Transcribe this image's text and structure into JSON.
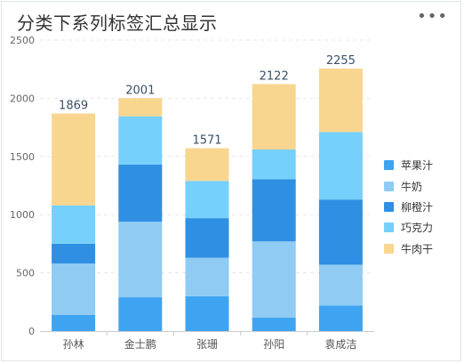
{
  "header": {
    "title": "分类下系列标签汇总显示",
    "menu_icon": "more-horizontal-icon"
  },
  "chart_data": {
    "type": "bar",
    "stacked": true,
    "categories": [
      "孙林",
      "金士鹏",
      "张珊",
      "孙阳",
      "袁成洁"
    ],
    "series": [
      {
        "name": "苹果汁",
        "color": "#3ea4f2",
        "values": [
          140,
          290,
          300,
          115,
          220
        ]
      },
      {
        "name": "牛奶",
        "color": "#8fcbf3",
        "values": [
          440,
          650,
          330,
          655,
          350
        ]
      },
      {
        "name": "柳橙汁",
        "color": "#2f8fe3",
        "values": [
          170,
          490,
          340,
          535,
          560
        ]
      },
      {
        "name": "巧克力",
        "color": "#75d0fb",
        "values": [
          330,
          415,
          320,
          255,
          580
        ]
      },
      {
        "name": "牛肉干",
        "color": "#f8d690",
        "values": [
          789,
          156,
          281,
          562,
          545
        ]
      }
    ],
    "totals": [
      "1869",
      "2001",
      "1571",
      "2122",
      "2255"
    ],
    "y_ticks": [
      "0",
      "500",
      "1000",
      "1500",
      "2000",
      "2500"
    ],
    "ylim": [
      0,
      2500
    ],
    "grid": true,
    "legend_position": "right"
  }
}
